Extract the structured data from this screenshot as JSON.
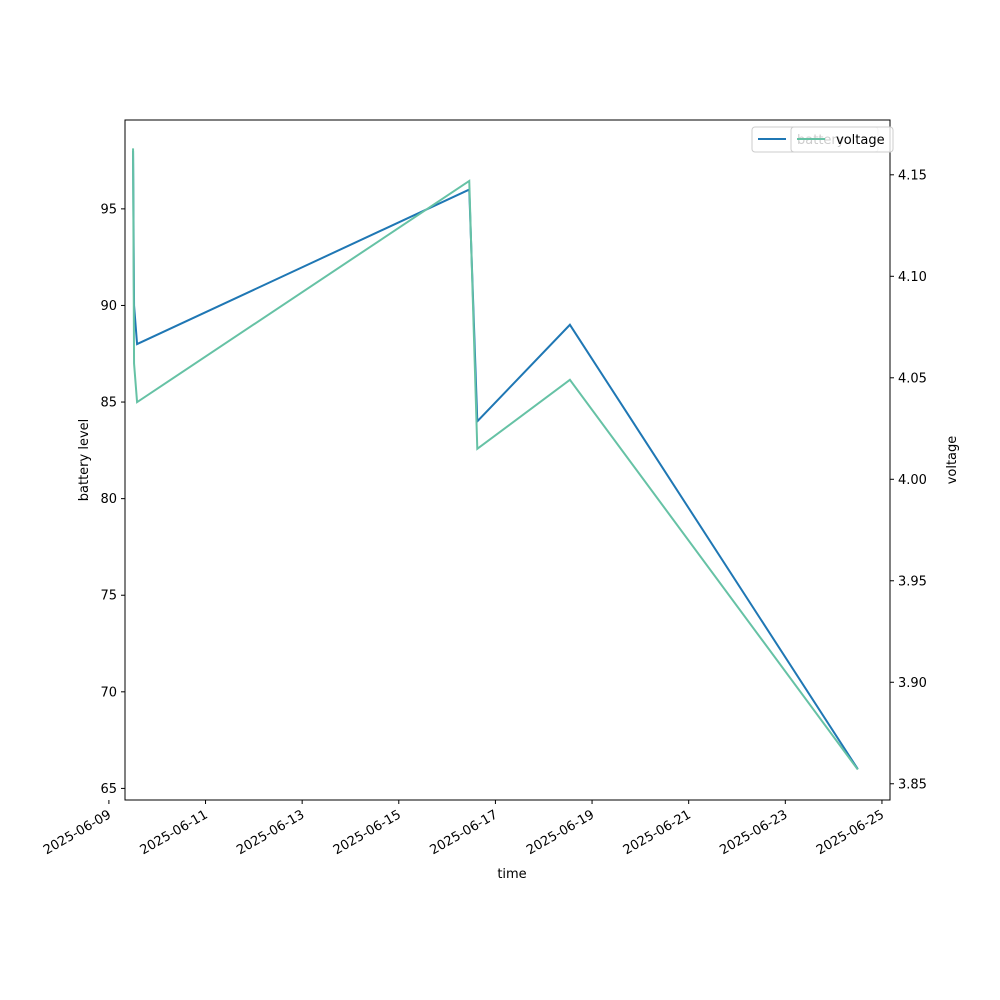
{
  "chart_data": {
    "type": "line",
    "title": "",
    "xlabel": "time",
    "ylabel": "battery level",
    "ylabel_right": "voltage",
    "x_ticks": [
      "2025-06-09",
      "2025-06-11",
      "2025-06-13",
      "2025-06-15",
      "2025-06-17",
      "2025-06-19",
      "2025-06-21",
      "2025-06-23",
      "2025-06-25"
    ],
    "y_ticks": [
      65,
      70,
      75,
      80,
      85,
      90,
      95
    ],
    "y_right_ticks": [
      "3.85",
      "3.90",
      "3.95",
      "4.00",
      "4.05",
      "4.10",
      "4.15"
    ],
    "xlim": [
      "2025-06-09T08:00",
      "2025-06-25T04:00"
    ],
    "ylim": [
      64.4,
      99.6
    ],
    "ylim_right": [
      3.842,
      4.177
    ],
    "grid": false,
    "legend_position": "top-right",
    "series": [
      {
        "name": "battery",
        "axis": "left",
        "color": "#1f77b4",
        "points": [
          {
            "x": "2025-06-09T12:00",
            "y": 98
          },
          {
            "x": "2025-06-09T12:30",
            "y": 90
          },
          {
            "x": "2025-06-09T14:00",
            "y": 88
          },
          {
            "x": "2025-06-16T11:00",
            "y": 96
          },
          {
            "x": "2025-06-16T15:00",
            "y": 84
          },
          {
            "x": "2025-06-18T13:00",
            "y": 89
          },
          {
            "x": "2025-06-24T12:00",
            "y": 66
          }
        ]
      },
      {
        "name": "voltage",
        "axis": "right",
        "color": "#66c2a5",
        "points": [
          {
            "x": "2025-06-09T12:00",
            "y": 4.163
          },
          {
            "x": "2025-06-09T12:30",
            "y": 4.057
          },
          {
            "x": "2025-06-09T14:00",
            "y": 4.038
          },
          {
            "x": "2025-06-16T11:00",
            "y": 4.147
          },
          {
            "x": "2025-06-16T15:00",
            "y": 4.015
          },
          {
            "x": "2025-06-18T13:00",
            "y": 4.049
          },
          {
            "x": "2025-06-24T12:00",
            "y": 3.857
          }
        ]
      }
    ]
  }
}
